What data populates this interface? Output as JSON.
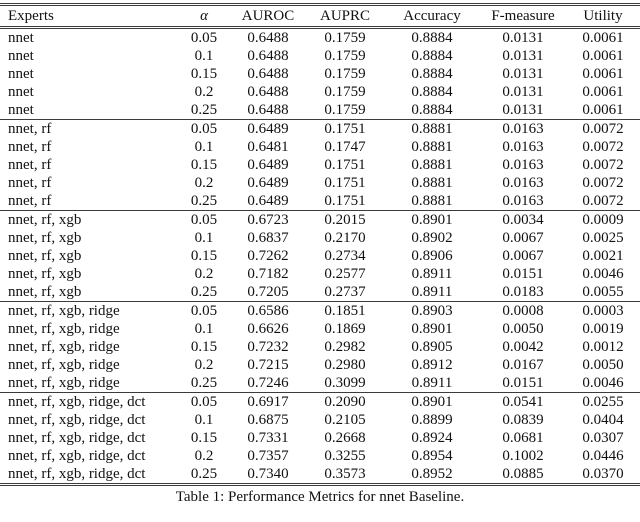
{
  "table": {
    "caption": "Table 1: Performance Metrics for nnet Baseline.",
    "columns": [
      {
        "key": "experts",
        "label": "Experts",
        "italic": false,
        "align": "left"
      },
      {
        "key": "alpha",
        "label": "α",
        "italic": true,
        "align": "center"
      },
      {
        "key": "auroc",
        "label": "AUROC",
        "italic": false,
        "align": "center"
      },
      {
        "key": "auprc",
        "label": "AUPRC",
        "italic": false,
        "align": "center"
      },
      {
        "key": "accuracy",
        "label": "Accuracy",
        "italic": false,
        "align": "center"
      },
      {
        "key": "f-measure",
        "label": "F-measure",
        "italic": false,
        "align": "center"
      },
      {
        "key": "utility",
        "label": "Utility",
        "italic": false,
        "align": "center"
      }
    ],
    "groups": [
      {
        "experts": "nnet",
        "rows": [
          [
            "nnet",
            "0.05",
            "0.6488",
            "0.1759",
            "0.8884",
            "0.0131",
            "0.0061"
          ],
          [
            "nnet",
            "0.1",
            "0.6488",
            "0.1759",
            "0.8884",
            "0.0131",
            "0.0061"
          ],
          [
            "nnet",
            "0.15",
            "0.6488",
            "0.1759",
            "0.8884",
            "0.0131",
            "0.0061"
          ],
          [
            "nnet",
            "0.2",
            "0.6488",
            "0.1759",
            "0.8884",
            "0.0131",
            "0.0061"
          ],
          [
            "nnet",
            "0.25",
            "0.6488",
            "0.1759",
            "0.8884",
            "0.0131",
            "0.0061"
          ]
        ]
      },
      {
        "experts": "nnet, rf",
        "rows": [
          [
            "nnet, rf",
            "0.05",
            "0.6489",
            "0.1751",
            "0.8881",
            "0.0163",
            "0.0072"
          ],
          [
            "nnet, rf",
            "0.1",
            "0.6481",
            "0.1747",
            "0.8881",
            "0.0163",
            "0.0072"
          ],
          [
            "nnet, rf",
            "0.15",
            "0.6489",
            "0.1751",
            "0.8881",
            "0.0163",
            "0.0072"
          ],
          [
            "nnet, rf",
            "0.2",
            "0.6489",
            "0.1751",
            "0.8881",
            "0.0163",
            "0.0072"
          ],
          [
            "nnet, rf",
            "0.25",
            "0.6489",
            "0.1751",
            "0.8881",
            "0.0163",
            "0.0072"
          ]
        ]
      },
      {
        "experts": "nnet, rf, xgb",
        "rows": [
          [
            "nnet, rf, xgb",
            "0.05",
            "0.6723",
            "0.2015",
            "0.8901",
            "0.0034",
            "0.0009"
          ],
          [
            "nnet, rf, xgb",
            "0.1",
            "0.6837",
            "0.2170",
            "0.8902",
            "0.0067",
            "0.0025"
          ],
          [
            "nnet, rf, xgb",
            "0.15",
            "0.7262",
            "0.2734",
            "0.8906",
            "0.0067",
            "0.0021"
          ],
          [
            "nnet, rf, xgb",
            "0.2",
            "0.7182",
            "0.2577",
            "0.8911",
            "0.0151",
            "0.0046"
          ],
          [
            "nnet, rf, xgb",
            "0.25",
            "0.7205",
            "0.2737",
            "0.8911",
            "0.0183",
            "0.0055"
          ]
        ]
      },
      {
        "experts": "nnet, rf, xgb, ridge",
        "rows": [
          [
            "nnet, rf, xgb, ridge",
            "0.05",
            "0.6586",
            "0.1851",
            "0.8903",
            "0.0008",
            "0.0003"
          ],
          [
            "nnet, rf, xgb, ridge",
            "0.1",
            "0.6626",
            "0.1869",
            "0.8901",
            "0.0050",
            "0.0019"
          ],
          [
            "nnet, rf, xgb, ridge",
            "0.15",
            "0.7232",
            "0.2982",
            "0.8905",
            "0.0042",
            "0.0012"
          ],
          [
            "nnet, rf, xgb, ridge",
            "0.2",
            "0.7215",
            "0.2980",
            "0.8912",
            "0.0167",
            "0.0050"
          ],
          [
            "nnet, rf, xgb, ridge",
            "0.25",
            "0.7246",
            "0.3099",
            "0.8911",
            "0.0151",
            "0.0046"
          ]
        ]
      },
      {
        "experts": "nnet, rf, xgb, ridge, dct",
        "rows": [
          [
            "nnet, rf, xgb, ridge, dct",
            "0.05",
            "0.6917",
            "0.2090",
            "0.8901",
            "0.0541",
            "0.0255"
          ],
          [
            "nnet, rf, xgb, ridge, dct",
            "0.1",
            "0.6875",
            "0.2105",
            "0.8899",
            "0.0839",
            "0.0404"
          ],
          [
            "nnet, rf, xgb, ridge, dct",
            "0.15",
            "0.7331",
            "0.2668",
            "0.8924",
            "0.0681",
            "0.0307"
          ],
          [
            "nnet, rf, xgb, ridge, dct",
            "0.2",
            "0.7357",
            "0.3255",
            "0.8954",
            "0.1002",
            "0.0446"
          ],
          [
            "nnet, rf, xgb, ridge, dct",
            "0.25",
            "0.7340",
            "0.3573",
            "0.8952",
            "0.0885",
            "0.0370"
          ]
        ]
      }
    ]
  }
}
